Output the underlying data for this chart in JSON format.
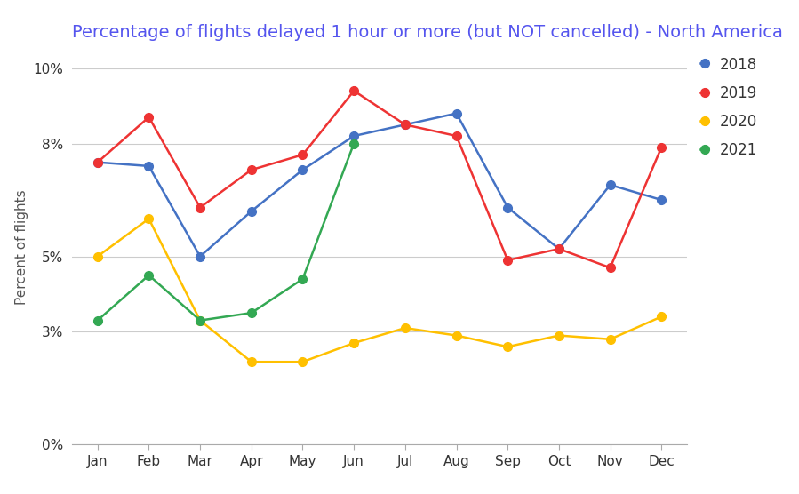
{
  "title": "Percentage of flights delayed 1 hour or more (but NOT cancelled) - North America",
  "ylabel": "Percent of flights",
  "months": [
    "Jan",
    "Feb",
    "Mar",
    "Apr",
    "May",
    "Jun",
    "Jul",
    "Aug",
    "Sep",
    "Oct",
    "Nov",
    "Dec"
  ],
  "series": {
    "2018": [
      0.075,
      0.074,
      0.05,
      0.062,
      0.073,
      0.082,
      0.085,
      0.088,
      0.063,
      0.052,
      0.069,
      0.065
    ],
    "2019": [
      0.075,
      0.087,
      0.063,
      0.073,
      0.077,
      0.094,
      0.085,
      0.082,
      0.049,
      0.052,
      0.047,
      0.079
    ],
    "2020": [
      0.05,
      0.06,
      0.033,
      0.022,
      0.022,
      0.027,
      0.031,
      0.029,
      0.026,
      0.029,
      0.028,
      0.034
    ],
    "2021": [
      0.033,
      0.045,
      0.033,
      0.035,
      0.044,
      0.08,
      null,
      null,
      null,
      null,
      null,
      null
    ]
  },
  "colors": {
    "2018": "#4472C4",
    "2019": "#EE3333",
    "2020": "#FFC000",
    "2021": "#33A853"
  },
  "ylim": [
    0,
    0.105
  ],
  "yticks": [
    0.0,
    0.03,
    0.05,
    0.08,
    0.1
  ],
  "ytick_labels": [
    "0%",
    "3%",
    "5%",
    "8%",
    "10%"
  ],
  "background_color": "#ffffff",
  "title_color": "#5555EE",
  "title_fontsize": 14,
  "legend_fontsize": 12,
  "axis_label_fontsize": 11
}
